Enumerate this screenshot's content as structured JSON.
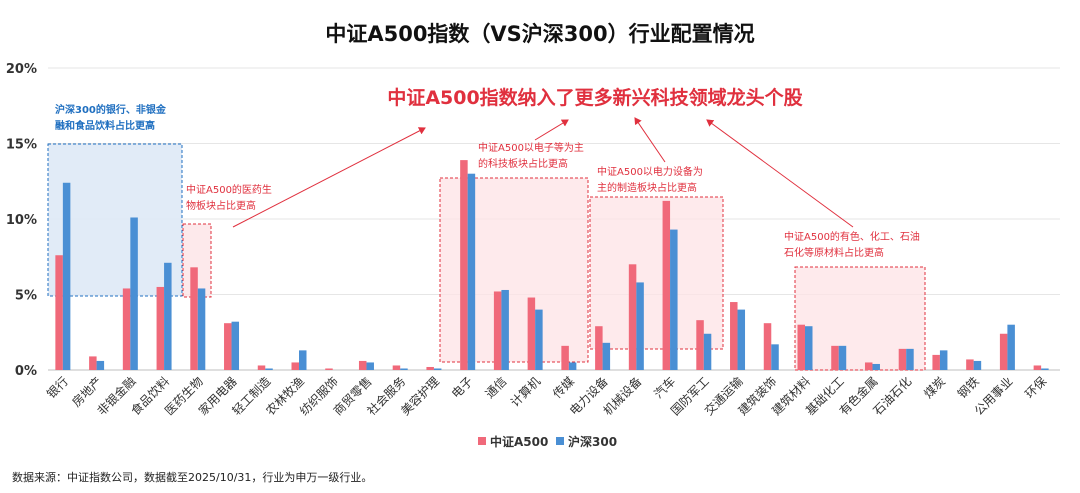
{
  "chart_data": {
    "type": "bar",
    "title": "中证A500指数（VS沪深300）行业配置情况",
    "y_ticks": [
      "0%",
      "5%",
      "10%",
      "15%",
      "20%"
    ],
    "ylim": [
      0,
      20
    ],
    "grid": true,
    "legend_position": "bottom-center",
    "categories": [
      "银行",
      "房地产",
      "非银金融",
      "食品饮料",
      "医药生物",
      "家用电器",
      "轻工制造",
      "农林牧渔",
      "纺织服饰",
      "商贸零售",
      "社会服务",
      "美容护理",
      "电子",
      "通信",
      "计算机",
      "传媒",
      "电力设备",
      "机械设备",
      "汽车",
      "国防军工",
      "交通运输",
      "建筑装饰",
      "建筑材料",
      "基础化工",
      "有色金属",
      "石油石化",
      "煤炭",
      "钢铁",
      "公用事业",
      "环保"
    ],
    "series": [
      {
        "name": "中证A500",
        "color": "#f0697a",
        "values": [
          7.6,
          0.9,
          5.4,
          5.5,
          6.8,
          3.1,
          0.3,
          0.5,
          0.1,
          0.6,
          0.3,
          0.2,
          13.9,
          5.2,
          4.8,
          1.6,
          2.9,
          7.0,
          11.2,
          3.3,
          4.5,
          3.1,
          3.0,
          1.6,
          0.5,
          1.4,
          1.0,
          0.7,
          2.4,
          0.3
        ]
      },
      {
        "name": "沪深300",
        "color": "#4a8fd4",
        "values": [
          12.4,
          0.6,
          10.1,
          7.1,
          5.4,
          3.2,
          0.1,
          1.3,
          0.0,
          0.5,
          0.1,
          0.1,
          13.0,
          5.3,
          4.0,
          0.5,
          1.8,
          5.8,
          9.3,
          2.4,
          4.0,
          1.7,
          2.9,
          1.6,
          0.4,
          1.4,
          1.3,
          0.6,
          3.0,
          0.1
        ]
      }
    ],
    "annotations": {
      "headline": "中证A500指数纳入了更多新兴科技领域龙头个股",
      "blue_note": [
        "沪深300的银行、非银金",
        "融和食品饮料占比更高"
      ],
      "pharma_note": [
        "中证A500的医药生",
        "物板块占比更高"
      ],
      "tech_note": [
        "中证A500以电子等为主",
        "的科技板块占比更高"
      ],
      "mfg_note": [
        "中证A500以电力设备为",
        "主的制造板块占比更高"
      ],
      "material_note": [
        "中证A500的有色、化工、石油",
        "石化等原材料占比更高"
      ]
    },
    "source": "数据来源：中证指数公司，数据截至2025/10/31，行业为申万一级行业。"
  }
}
